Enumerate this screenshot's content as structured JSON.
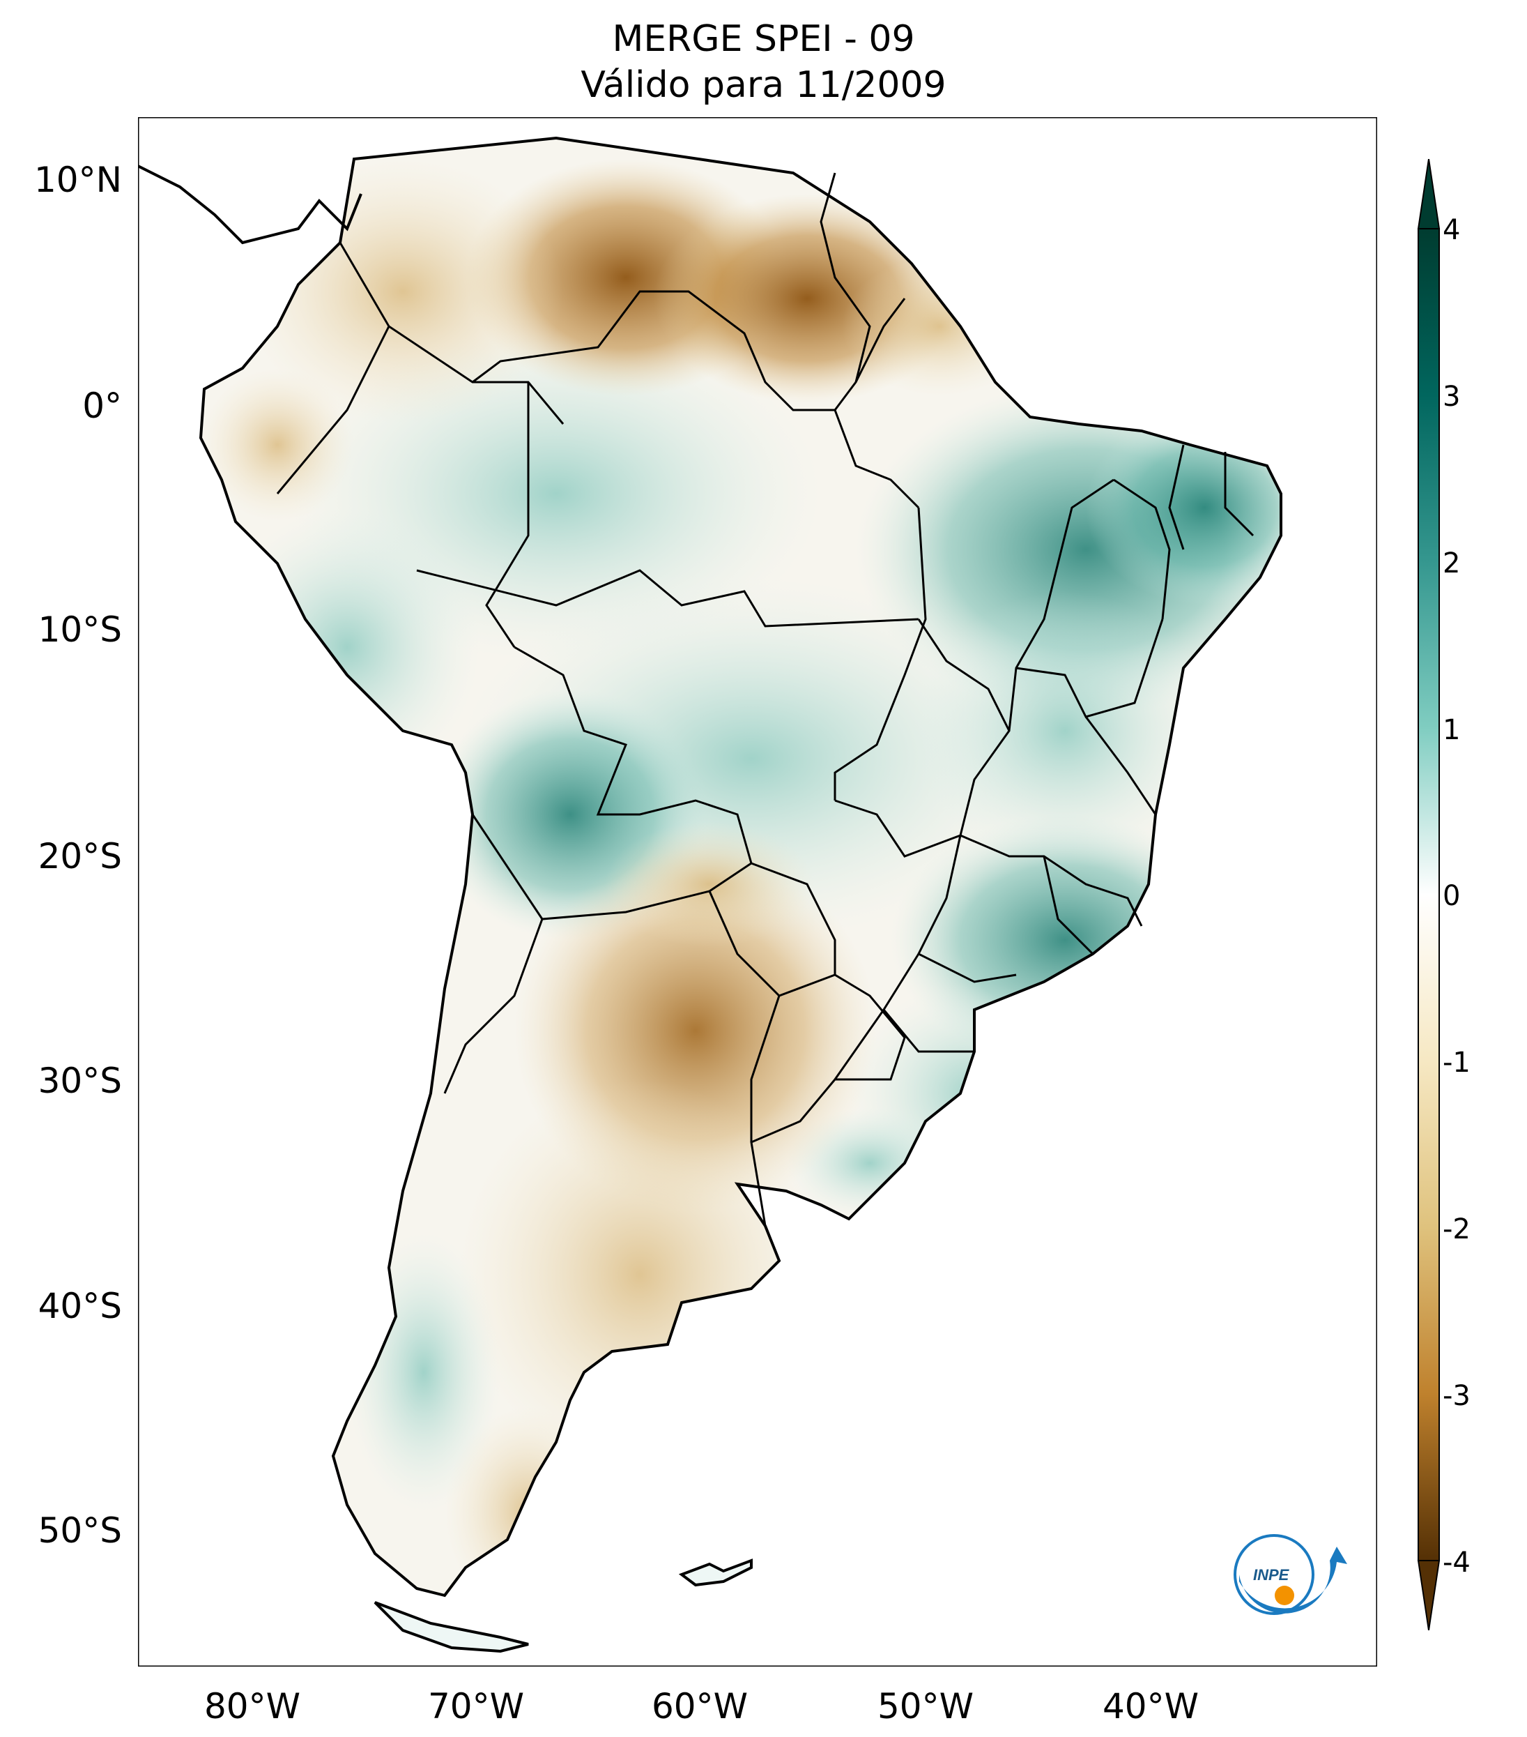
{
  "title": {
    "line1": "MERGE   SPEI - 09",
    "line2": "Válido para 11/2009"
  },
  "map": {
    "region": "South America",
    "lat_ticks": [
      "10°N",
      "0°",
      "10°S",
      "20°S",
      "30°S",
      "40°S",
      "50°S"
    ],
    "lon_ticks": [
      "80°W",
      "70°W",
      "60°W",
      "50°W",
      "40°W"
    ],
    "extent": {
      "lon_min": -85,
      "lon_max": -30,
      "lat_min": -56,
      "lat_max": 13
    }
  },
  "colorbar": {
    "ticks": [
      "4",
      "3",
      "2",
      "1",
      "0",
      "-1",
      "-2",
      "-3",
      "-4"
    ],
    "min": -4,
    "max": 4,
    "colors": {
      "dry_extreme": "#543005",
      "dry": "#bf812d",
      "neutral": "#ffffff",
      "wet": "#35978f",
      "wet_extreme": "#003c30"
    }
  },
  "logo": {
    "label": "INPE"
  }
}
